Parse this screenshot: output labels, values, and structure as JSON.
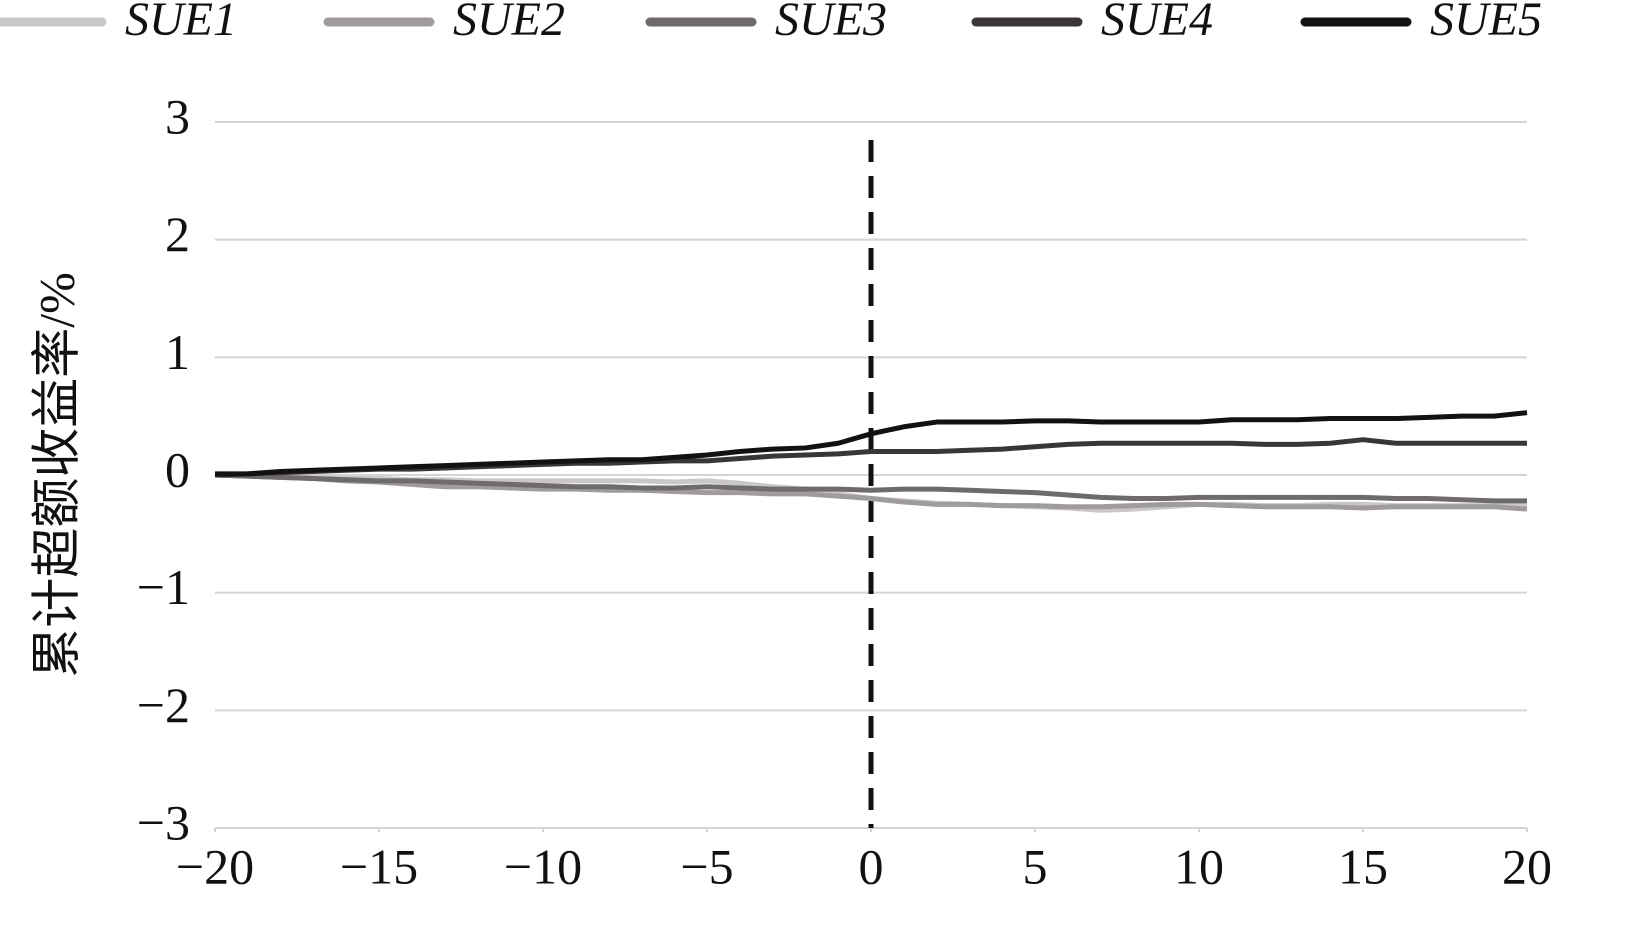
{
  "chart_data": {
    "type": "line",
    "y_label": "累计超额收益率/%",
    "x": [
      -20,
      -19,
      -18,
      -17,
      -16,
      -15,
      -14,
      -13,
      -12,
      -11,
      -10,
      -9,
      -8,
      -7,
      -6,
      -5,
      -4,
      -3,
      -2,
      -1,
      0,
      1,
      2,
      3,
      4,
      5,
      6,
      7,
      8,
      9,
      10,
      11,
      12,
      13,
      14,
      15,
      16,
      17,
      18,
      19,
      20
    ],
    "series": [
      {
        "name": "SUE1",
        "color": "#c9c7c7",
        "values": [
          0,
          -0.01,
          -0.02,
          -0.02,
          -0.03,
          -0.03,
          -0.04,
          -0.04,
          -0.05,
          -0.05,
          -0.05,
          -0.05,
          -0.05,
          -0.05,
          -0.06,
          -0.05,
          -0.07,
          -0.1,
          -0.12,
          -0.16,
          -0.2,
          -0.22,
          -0.24,
          -0.25,
          -0.26,
          -0.27,
          -0.28,
          -0.3,
          -0.29,
          -0.27,
          -0.25,
          -0.25,
          -0.26,
          -0.26,
          -0.25,
          -0.25,
          -0.26,
          -0.26,
          -0.26,
          -0.26,
          -0.26
        ]
      },
      {
        "name": "SUE2",
        "color": "#a09c9c",
        "values": [
          0,
          -0.01,
          -0.02,
          -0.03,
          -0.05,
          -0.06,
          -0.08,
          -0.1,
          -0.1,
          -0.11,
          -0.12,
          -0.12,
          -0.13,
          -0.13,
          -0.14,
          -0.15,
          -0.15,
          -0.16,
          -0.16,
          -0.18,
          -0.2,
          -0.23,
          -0.25,
          -0.25,
          -0.26,
          -0.26,
          -0.27,
          -0.27,
          -0.26,
          -0.25,
          -0.25,
          -0.26,
          -0.27,
          -0.27,
          -0.27,
          -0.28,
          -0.27,
          -0.27,
          -0.27,
          -0.27,
          -0.29
        ]
      },
      {
        "name": "SUE3",
        "color": "#6f6b6b",
        "values": [
          0,
          -0.01,
          -0.02,
          -0.03,
          -0.04,
          -0.05,
          -0.05,
          -0.06,
          -0.07,
          -0.08,
          -0.09,
          -0.1,
          -0.1,
          -0.11,
          -0.11,
          -0.1,
          -0.11,
          -0.12,
          -0.12,
          -0.12,
          -0.13,
          -0.12,
          -0.12,
          -0.13,
          -0.14,
          -0.15,
          -0.17,
          -0.19,
          -0.2,
          -0.2,
          -0.19,
          -0.19,
          -0.19,
          -0.19,
          -0.19,
          -0.19,
          -0.2,
          -0.2,
          -0.21,
          -0.22,
          -0.22
        ]
      },
      {
        "name": "SUE4",
        "color": "#3a3636",
        "values": [
          0,
          0.01,
          0.02,
          0.03,
          0.04,
          0.05,
          0.05,
          0.06,
          0.07,
          0.08,
          0.09,
          0.1,
          0.1,
          0.11,
          0.12,
          0.12,
          0.14,
          0.16,
          0.17,
          0.18,
          0.2,
          0.2,
          0.2,
          0.21,
          0.22,
          0.24,
          0.26,
          0.27,
          0.27,
          0.27,
          0.27,
          0.27,
          0.26,
          0.26,
          0.27,
          0.3,
          0.27,
          0.27,
          0.27,
          0.27,
          0.27
        ]
      },
      {
        "name": "SUE5",
        "color": "#121212",
        "values": [
          0.01,
          0.01,
          0.03,
          0.04,
          0.05,
          0.06,
          0.07,
          0.08,
          0.09,
          0.1,
          0.11,
          0.12,
          0.13,
          0.13,
          0.15,
          0.17,
          0.2,
          0.22,
          0.23,
          0.27,
          0.35,
          0.41,
          0.45,
          0.45,
          0.45,
          0.46,
          0.46,
          0.45,
          0.45,
          0.45,
          0.45,
          0.47,
          0.47,
          0.47,
          0.48,
          0.48,
          0.48,
          0.49,
          0.5,
          0.5,
          0.53
        ]
      }
    ],
    "xlim": [
      -20,
      20
    ],
    "xticks": [
      {
        "value": -20,
        "label": "−20"
      },
      {
        "value": -15,
        "label": "−15"
      },
      {
        "value": -10,
        "label": "−10"
      },
      {
        "value": -5,
        "label": "−5"
      },
      0,
      5,
      10,
      15,
      20
    ],
    "ylim": [
      -3,
      3
    ],
    "yticks": [
      {
        "value": -3,
        "label": "−3"
      },
      {
        "value": -2,
        "label": "−2"
      },
      {
        "value": -1,
        "label": "−1"
      },
      0,
      1,
      2,
      3
    ],
    "grid": true,
    "vline": 0,
    "legend": "top"
  }
}
